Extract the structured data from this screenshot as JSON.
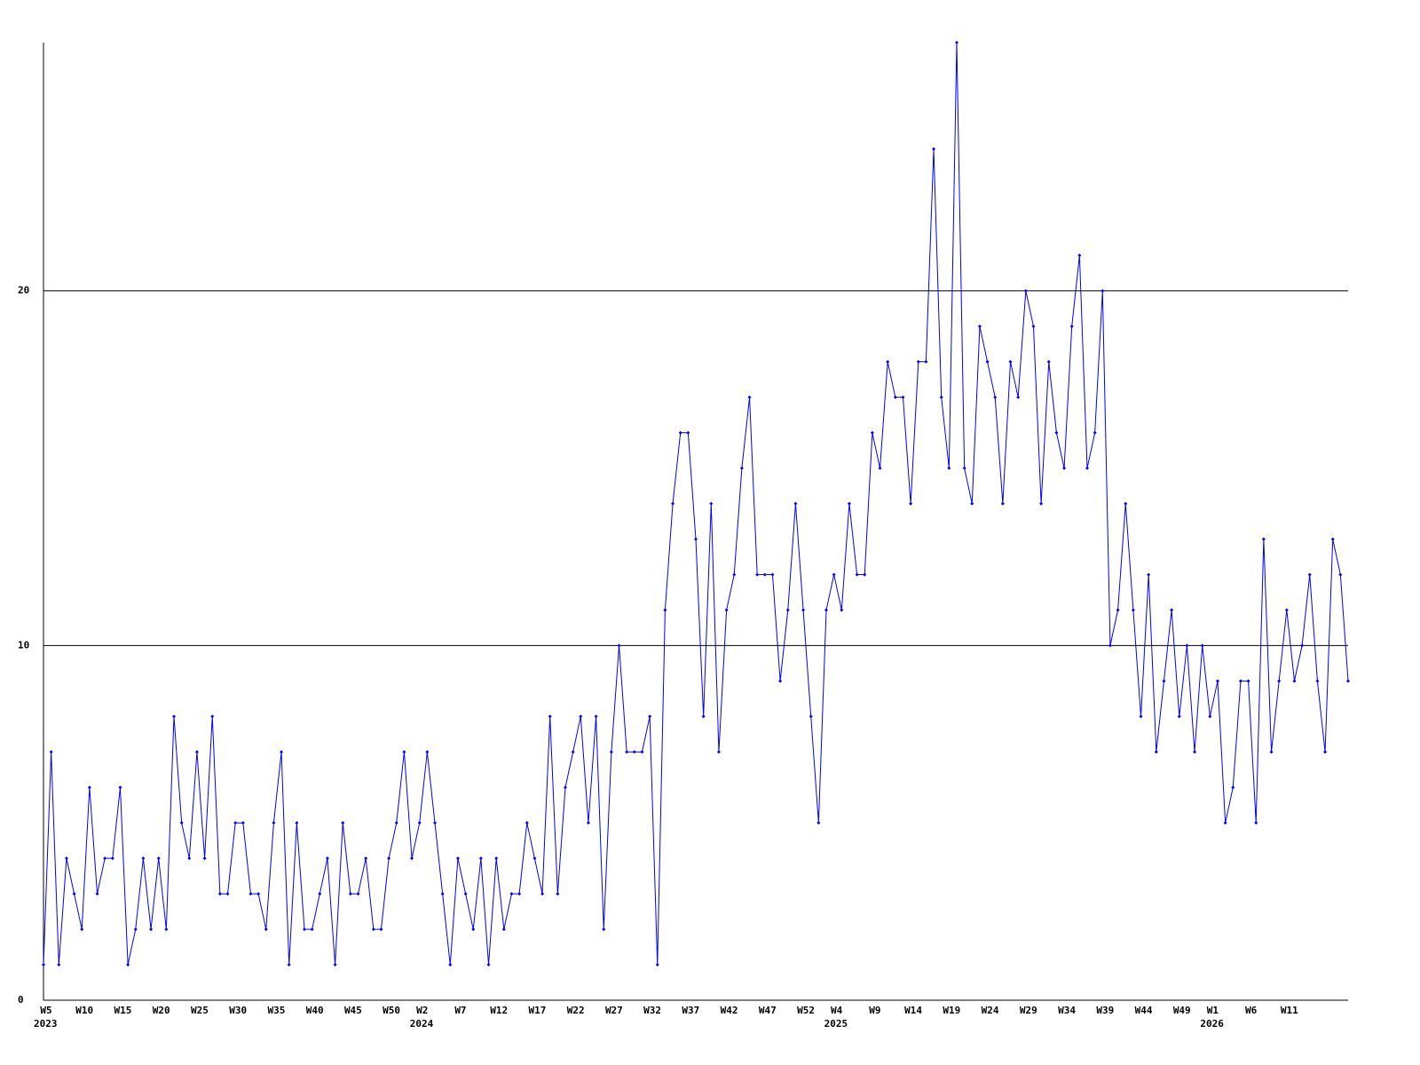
{
  "chart_data": {
    "type": "line",
    "categories": [
      "W5",
      null,
      null,
      null,
      null,
      "W10",
      null,
      null,
      null,
      null,
      "W15",
      null,
      null,
      null,
      null,
      "W20",
      null,
      null,
      null,
      null,
      "W25",
      null,
      null,
      null,
      null,
      "W30",
      null,
      null,
      null,
      null,
      "W35",
      null,
      null,
      null,
      null,
      "W40",
      null,
      null,
      null,
      null,
      "W45",
      null,
      null,
      null,
      null,
      "W50",
      null,
      null,
      null,
      "W2",
      null,
      null,
      null,
      null,
      "W7",
      null,
      null,
      null,
      null,
      "W12",
      null,
      null,
      null,
      null,
      "W17",
      null,
      null,
      null,
      null,
      "W22",
      null,
      null,
      null,
      null,
      "W27",
      null,
      null,
      null,
      null,
      "W32",
      null,
      null,
      null,
      null,
      "W37",
      null,
      null,
      null,
      null,
      "W42",
      null,
      null,
      null,
      null,
      "W47",
      null,
      null,
      null,
      null,
      "W52",
      null,
      null,
      null,
      "W4",
      null,
      null,
      null,
      null,
      "W9",
      null,
      null,
      null,
      null,
      "W14",
      null,
      null,
      null,
      null,
      "W19",
      null,
      null,
      null,
      null,
      "W24",
      null,
      null,
      null,
      null,
      "W29",
      null,
      null,
      null,
      null,
      "W34",
      null,
      null,
      null,
      null,
      "W39",
      null,
      null,
      null,
      null,
      "W44",
      null,
      null,
      null,
      null,
      "W49",
      null,
      null,
      null,
      "W1",
      null,
      null,
      null,
      null,
      "W6",
      null,
      null,
      null,
      null,
      "W11",
      null,
      null,
      null,
      null,
      null,
      null,
      null,
      null
    ],
    "category_years": [
      "2023",
      null,
      null,
      null,
      null,
      null,
      null,
      null,
      null,
      null,
      null,
      null,
      null,
      null,
      null,
      null,
      null,
      null,
      null,
      null,
      null,
      null,
      null,
      null,
      null,
      null,
      null,
      null,
      null,
      null,
      null,
      null,
      null,
      null,
      null,
      null,
      null,
      null,
      null,
      null,
      null,
      null,
      null,
      null,
      null,
      null,
      null,
      null,
      null,
      "2024",
      null,
      null,
      null,
      null,
      null,
      null,
      null,
      null,
      null,
      null,
      null,
      null,
      null,
      null,
      null,
      null,
      null,
      null,
      null,
      null,
      null,
      null,
      null,
      null,
      null,
      null,
      null,
      null,
      null,
      null,
      null,
      null,
      null,
      null,
      null,
      null,
      null,
      null,
      null,
      null,
      null,
      null,
      null,
      null,
      null,
      null,
      null,
      null,
      null,
      null,
      null,
      null,
      null,
      "2025",
      null,
      null,
      null,
      null,
      null,
      null,
      null,
      null,
      null,
      null,
      null,
      null,
      null,
      null,
      null,
      null,
      null,
      null,
      null,
      null,
      null,
      null,
      null,
      null,
      null,
      null,
      null,
      null,
      null,
      null,
      null,
      null,
      null,
      null,
      null,
      null,
      null,
      null,
      null,
      null,
      null,
      null,
      null,
      null,
      null,
      null,
      null,
      null,
      "2026",
      null,
      null,
      null,
      null,
      null,
      null,
      null,
      null,
      null,
      null,
      null,
      null,
      null,
      null,
      null,
      null,
      null,
      null
    ],
    "values": [
      1,
      7,
      1,
      4,
      3,
      2,
      6,
      3,
      4,
      4,
      6,
      1,
      2,
      4,
      2,
      4,
      2,
      8,
      5,
      4,
      7,
      4,
      8,
      3,
      3,
      5,
      5,
      3,
      3,
      2,
      5,
      7,
      1,
      5,
      2,
      2,
      3,
      4,
      1,
      5,
      3,
      3,
      4,
      2,
      2,
      4,
      5,
      7,
      4,
      5,
      7,
      5,
      3,
      1,
      4,
      3,
      2,
      4,
      1,
      4,
      2,
      3,
      3,
      5,
      4,
      3,
      8,
      3,
      6,
      7,
      8,
      5,
      8,
      2,
      7,
      10,
      7,
      7,
      7,
      8,
      1,
      11,
      14,
      16,
      16,
      13,
      8,
      14,
      7,
      11,
      12,
      15,
      17,
      12,
      12,
      12,
      9,
      11,
      14,
      11,
      8,
      5,
      11,
      12,
      11,
      14,
      12,
      12,
      16,
      15,
      18,
      17,
      17,
      14,
      18,
      18,
      24,
      17,
      15,
      27,
      15,
      14,
      19,
      18,
      17,
      14,
      18,
      17,
      20,
      19,
      14,
      18,
      16,
      15,
      19,
      21,
      15,
      16,
      20,
      10,
      11,
      14,
      11,
      8,
      12,
      7,
      9,
      11,
      8,
      10,
      7,
      10,
      8,
      9,
      5,
      6,
      9,
      9,
      5,
      13,
      7,
      9,
      11,
      9,
      10,
      12,
      9,
      7,
      13,
      12,
      9
    ],
    "color": "#0000ff",
    "ylim": [
      0,
      27
    ],
    "yticks": [
      0,
      10,
      20
    ],
    "grid": true
  }
}
